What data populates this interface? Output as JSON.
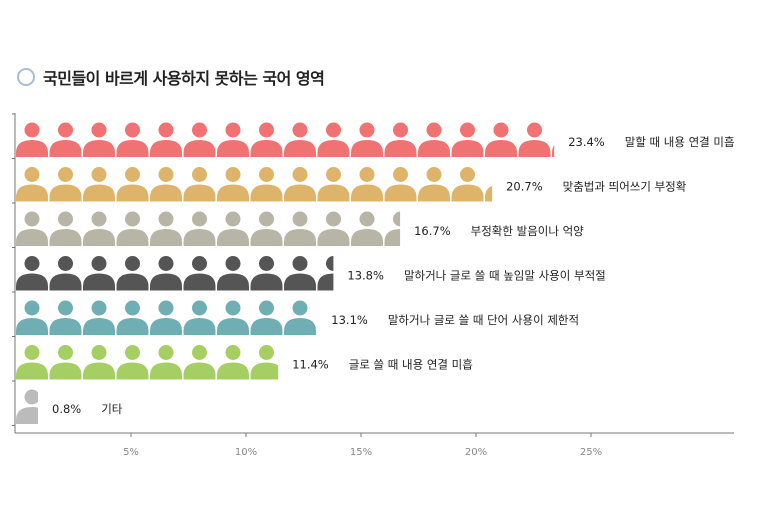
{
  "title": "국민들이 바르게 사용하지 못하는 국어 영역",
  "chart_data": {
    "type": "bar",
    "orientation": "horizontal",
    "marker": "person-pictogram",
    "title": "국민들이 바르게 사용하지 못하는 국어 영역",
    "xlabel": "",
    "ylabel": "",
    "xlim": [
      0,
      31
    ],
    "xticks": [
      5,
      10,
      15,
      20,
      25
    ],
    "xtick_labels": [
      "5%",
      "10%",
      "15%",
      "20%",
      "25%"
    ],
    "grid": false,
    "legend": "none",
    "categories": [
      "말할 때 내용 연결 미흡",
      "맞춤법과 띄어쓰기 부정확",
      "부정확한 발음이나 억양",
      "말하거나 글로 쓸 때 높임말 사용이 부적절",
      "말하거나 글로 쓸 때 단어 사용이 제한적",
      "글로 쓸 때 내용 연결 미흡",
      "기타"
    ],
    "values": [
      23.4,
      20.7,
      16.7,
      13.8,
      13.1,
      11.4,
      0.8
    ],
    "value_labels": [
      "23.4%",
      "20.7%",
      "16.7%",
      "13.8%",
      "13.1%",
      "11.4%",
      "0.8%"
    ],
    "colors": [
      "#f07272",
      "#ddb46a",
      "#b8b5a6",
      "#555555",
      "#6faeb3",
      "#a6cf63",
      "#bbbbbb"
    ]
  }
}
